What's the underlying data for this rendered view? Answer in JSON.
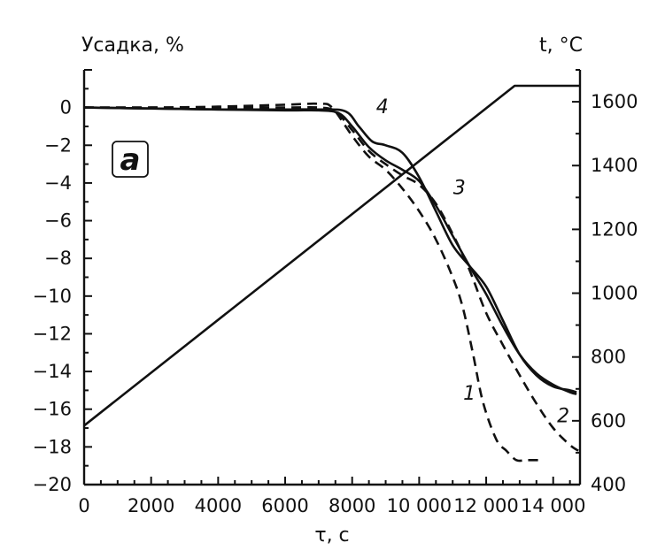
{
  "chart_data": {
    "type": "line",
    "panel_label": "a",
    "xlabel": "τ, с",
    "ylabel_left": "Усадка, %",
    "ylabel_right": "t, °C",
    "xlim": [
      0,
      14800
    ],
    "ylim_left": [
      -20,
      2
    ],
    "ylim_right": [
      400,
      1700
    ],
    "x_ticks": [
      {
        "value": 0,
        "label": "0"
      },
      {
        "value": 2000,
        "label": "2000"
      },
      {
        "value": 4000,
        "label": "4000"
      },
      {
        "value": 6000,
        "label": "6000"
      },
      {
        "value": 8000,
        "label": "8000"
      },
      {
        "value": 10000,
        "label": "10 000"
      },
      {
        "value": 12000,
        "label": "12 000"
      },
      {
        "value": 14000,
        "label": "14 000"
      }
    ],
    "y_left_ticks": [
      {
        "value": 0,
        "label": "0"
      },
      {
        "value": -2,
        "label": "−2"
      },
      {
        "value": -4,
        "label": "−4"
      },
      {
        "value": -6,
        "label": "−6"
      },
      {
        "value": -8,
        "label": "−8"
      },
      {
        "value": -10,
        "label": "−10"
      },
      {
        "value": -12,
        "label": "−12"
      },
      {
        "value": -14,
        "label": "−14"
      },
      {
        "value": -16,
        "label": "−16"
      },
      {
        "value": -18,
        "label": "−18"
      },
      {
        "value": -20,
        "label": "−20"
      }
    ],
    "y_right_ticks": [
      {
        "value": 400,
        "label": "400"
      },
      {
        "value": 600,
        "label": "600"
      },
      {
        "value": 800,
        "label": "800"
      },
      {
        "value": 1000,
        "label": "1000"
      },
      {
        "value": 1200,
        "label": "1200"
      },
      {
        "value": 1400,
        "label": "1400"
      },
      {
        "value": 1600,
        "label": "1600"
      }
    ],
    "series": [
      {
        "label": "1",
        "axis": "left",
        "style": "dashed",
        "x": [
          0,
          2000,
          4000,
          6000,
          7000,
          7400,
          8000,
          8500,
          9000,
          9500,
          10000,
          10500,
          11000,
          11300,
          11600,
          11900,
          12300,
          12600,
          12900,
          13200,
          13600
        ],
        "y": [
          0,
          0,
          0.05,
          0.15,
          0.2,
          0,
          -1.5,
          -2.6,
          -3.3,
          -4.3,
          -5.5,
          -7.0,
          -9.0,
          -10.6,
          -13.0,
          -15.6,
          -17.6,
          -18.2,
          -18.7,
          -18.7,
          -18.7
        ]
      },
      {
        "label": "2",
        "axis": "left",
        "style": "dashed",
        "x": [
          0,
          2000,
          4000,
          6000,
          7000,
          7500,
          8000,
          8500,
          9000,
          9500,
          10000,
          10500,
          11000,
          11500,
          12000,
          12500,
          13000,
          13500,
          14000,
          14500,
          14750
        ],
        "y": [
          0,
          0,
          0,
          0,
          0,
          -0.2,
          -1.2,
          -2.3,
          -3.0,
          -3.6,
          -4.1,
          -5.1,
          -6.7,
          -8.6,
          -10.9,
          -12.6,
          -14.2,
          -15.7,
          -17.0,
          -17.9,
          -18.2
        ]
      },
      {
        "label": "3",
        "axis": "left",
        "style": "solid",
        "x": [
          0,
          2000,
          4000,
          6000,
          7000,
          7600,
          8000,
          8500,
          9000,
          9500,
          10000,
          10500,
          11000,
          11500,
          12000,
          12500,
          13000,
          13500,
          14000,
          14500,
          14700
        ],
        "y": [
          0,
          -0.05,
          -0.1,
          -0.15,
          -0.15,
          -0.3,
          -1.0,
          -2.1,
          -2.8,
          -3.3,
          -3.9,
          -5.2,
          -6.8,
          -8.4,
          -9.9,
          -11.6,
          -13.1,
          -14.1,
          -14.7,
          -15.1,
          -15.2
        ]
      },
      {
        "label": "4",
        "axis": "left",
        "style": "solid",
        "x": [
          0,
          2000,
          4000,
          6000,
          7000,
          7800,
          8200,
          8600,
          9000,
          9500,
          10000,
          10500,
          11000,
          11500,
          12000,
          12500,
          13000,
          13500,
          14000,
          14500,
          14700
        ],
        "y": [
          0,
          -0.05,
          -0.1,
          -0.1,
          -0.1,
          -0.2,
          -1.0,
          -1.8,
          -2.0,
          -2.4,
          -3.7,
          -5.5,
          -7.3,
          -8.4,
          -9.5,
          -11.3,
          -13.1,
          -14.2,
          -14.8,
          -15.0,
          -15.1
        ]
      },
      {
        "label": "",
        "axis": "right",
        "style": "solid",
        "x": [
          0,
          12850,
          14800
        ],
        "y": [
          585,
          1650,
          1650
        ]
      }
    ],
    "curve_labels": [
      {
        "text": "1",
        "series": 0,
        "x": 11500,
        "y": -15.5
      },
      {
        "text": "2",
        "series": 1,
        "x": 14300,
        "y": -16.7
      },
      {
        "text": "3",
        "series": 2,
        "x": 11200,
        "y": -4.6
      },
      {
        "text": "4",
        "series": 3,
        "x": 8900,
        "y": -0.3
      }
    ]
  }
}
